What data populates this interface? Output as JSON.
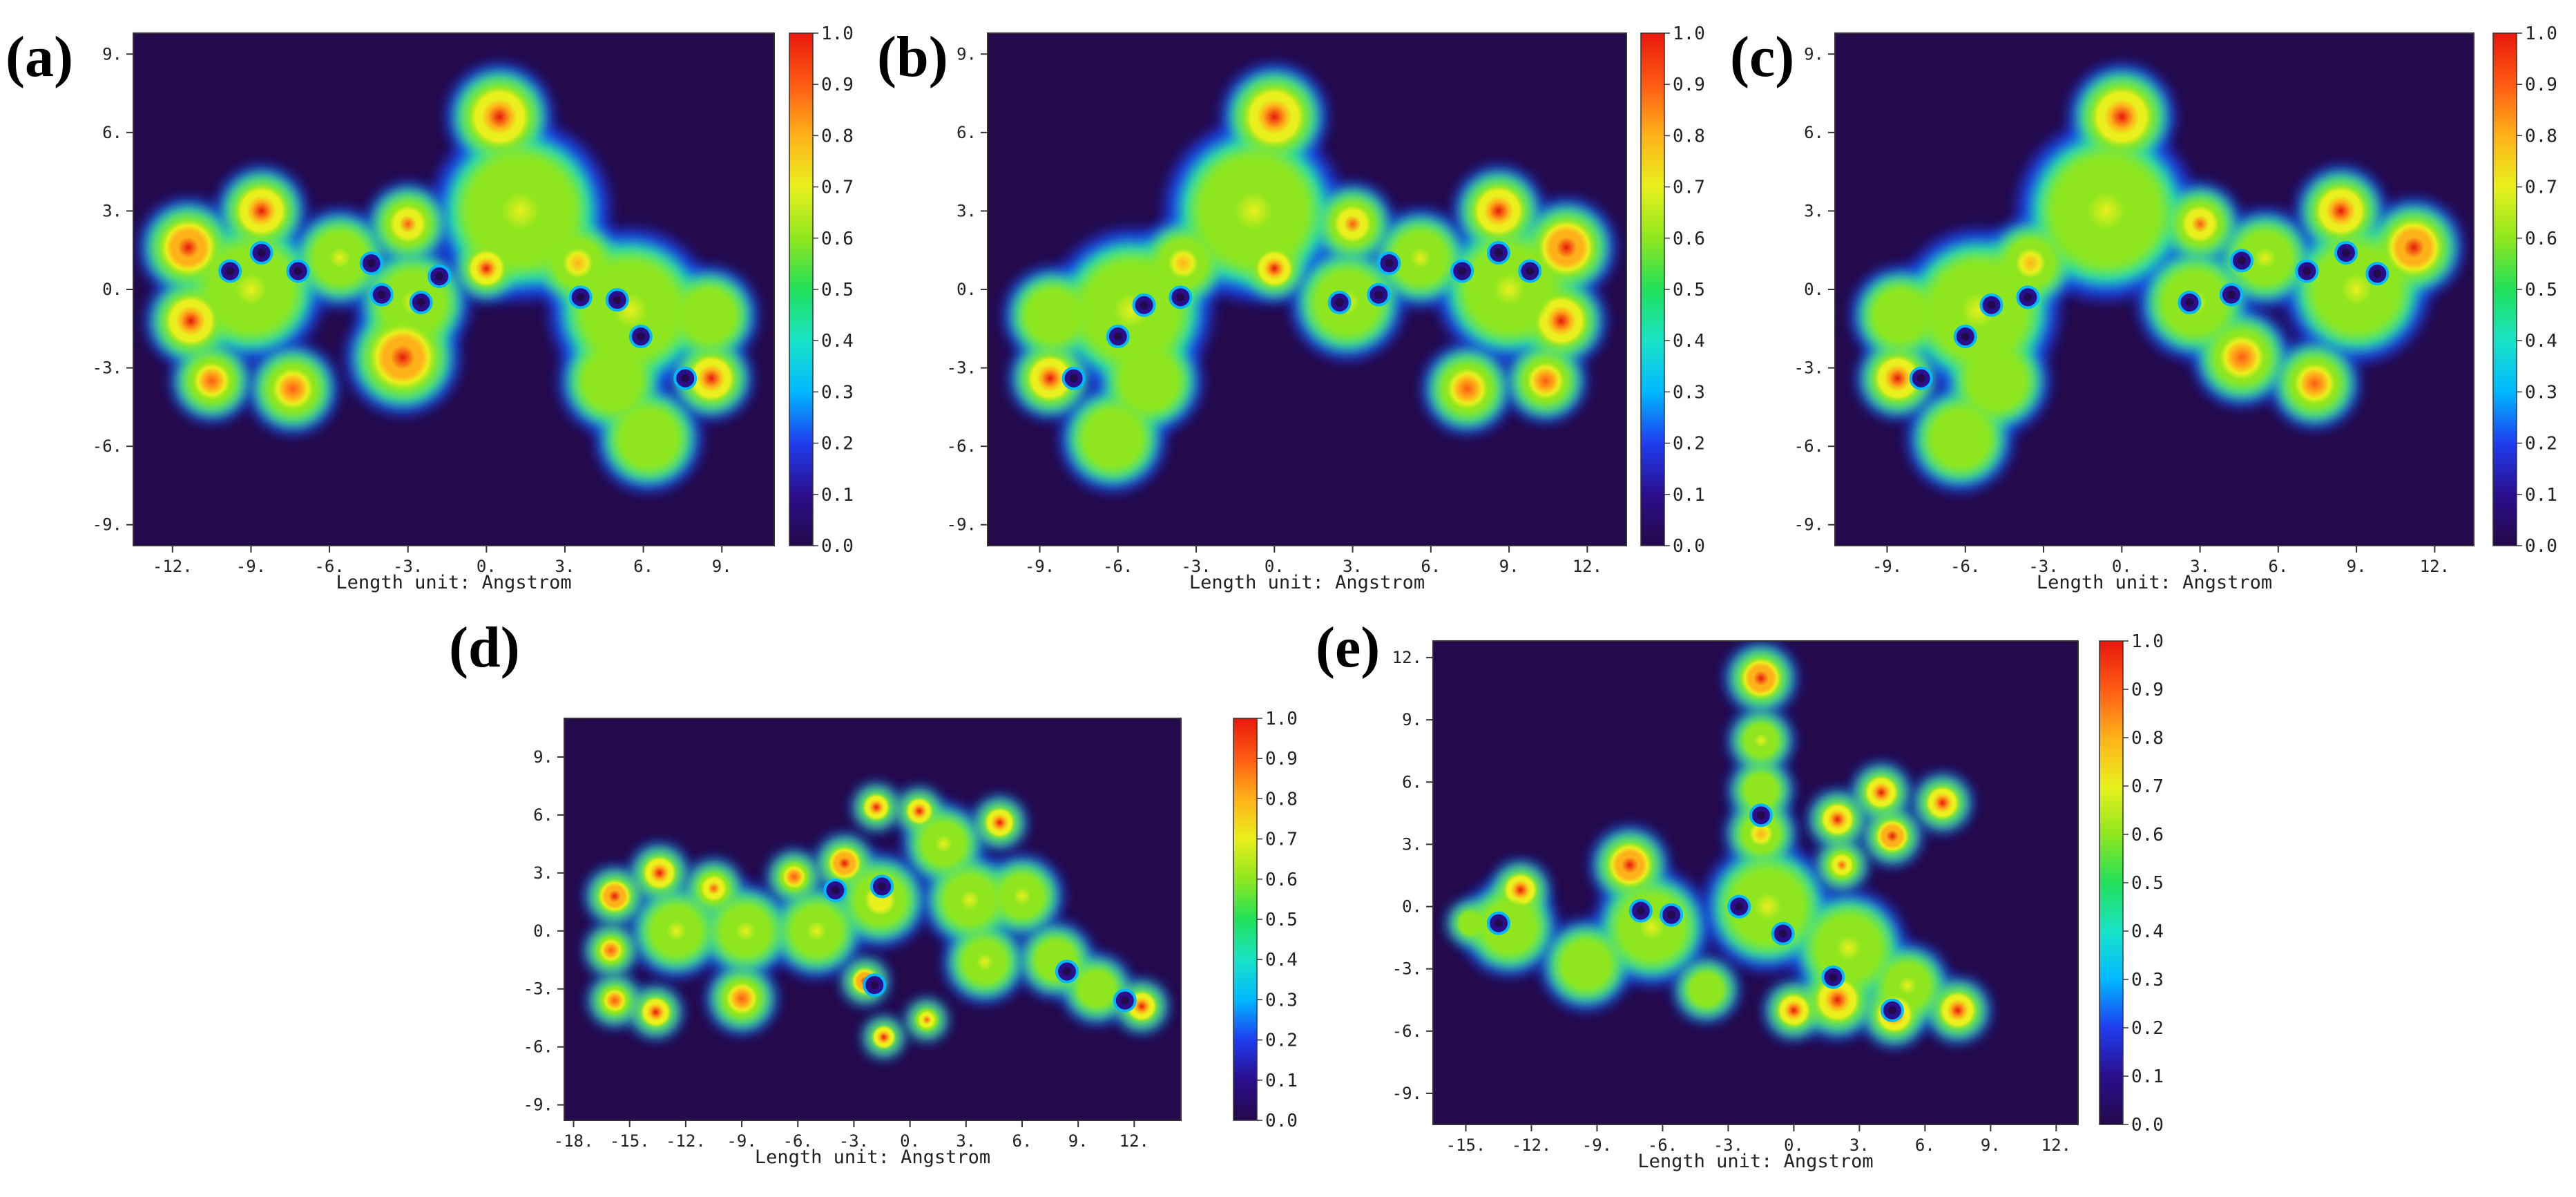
{
  "colors": {
    "background_plot": "#240a4b",
    "colormap": [
      "#240a4b",
      "#2a0e8c",
      "#1f3df0",
      "#00b8ff",
      "#19e3c7",
      "#22e05a",
      "#8fe61e",
      "#e9f01d",
      "#ffb11a",
      "#ff5b14",
      "#e8180c"
    ]
  },
  "chart_data": [
    {
      "type": "heatmap",
      "panel_label": "(a)",
      "xlabel": "Length unit: Angstrom",
      "xlim": [
        -13.5,
        11.0
      ],
      "ylim": [
        -9.8,
        9.8
      ],
      "x_ticks": [
        "-12.",
        "-9.",
        "-6.",
        "-3.",
        "0.",
        "3.",
        "6.",
        "9."
      ],
      "y_ticks": [
        "9.",
        "6.",
        "3.",
        "0.",
        "-3.",
        "-6.",
        "-9."
      ],
      "colorbar": {
        "min": 0.0,
        "max": 1.0,
        "ticks": [
          "1.0",
          "0.9",
          "0.8",
          "0.7",
          "0.6",
          "0.5",
          "0.4",
          "0.3",
          "0.2",
          "0.1",
          "0.0"
        ]
      },
      "basins": [
        {
          "x": 0.5,
          "y": 6.6,
          "r": 1.3,
          "v": 0.98
        },
        {
          "x": 1.3,
          "y": 3.0,
          "r": 2.2,
          "v": 0.68
        },
        {
          "x": -11.4,
          "y": 1.6,
          "r": 1.2,
          "v": 1.0
        },
        {
          "x": -11.3,
          "y": -1.2,
          "r": 1.1,
          "v": 0.98
        },
        {
          "x": -8.6,
          "y": 3.0,
          "r": 1.1,
          "v": 0.95
        },
        {
          "x": -9.0,
          "y": 0.0,
          "r": 1.8,
          "v": 0.7
        },
        {
          "x": -10.5,
          "y": -3.5,
          "r": 1.0,
          "v": 0.9
        },
        {
          "x": -7.4,
          "y": -3.8,
          "r": 1.1,
          "v": 0.92
        },
        {
          "x": -5.6,
          "y": 1.2,
          "r": 1.2,
          "v": 0.7
        },
        {
          "x": -3.0,
          "y": 2.5,
          "r": 1.0,
          "v": 0.85
        },
        {
          "x": -2.8,
          "y": -0.5,
          "r": 1.4,
          "v": 0.7
        },
        {
          "x": -3.2,
          "y": -2.6,
          "r": 1.4,
          "v": 1.0
        },
        {
          "x": 0.0,
          "y": 0.8,
          "r": 0.8,
          "v": 0.98
        },
        {
          "x": 3.5,
          "y": 1.0,
          "r": 1.1,
          "v": 0.75
        },
        {
          "x": 5.5,
          "y": -0.8,
          "r": 2.0,
          "v": 0.68
        },
        {
          "x": 4.8,
          "y": -3.5,
          "r": 1.3,
          "v": 0.62
        },
        {
          "x": 8.5,
          "y": -1.0,
          "r": 1.2,
          "v": 0.62
        },
        {
          "x": 8.6,
          "y": -3.4,
          "r": 1.0,
          "v": 0.97
        },
        {
          "x": 6.2,
          "y": -5.7,
          "r": 1.3,
          "v": 0.55
        }
      ],
      "blue_rings": [
        {
          "x": -9.8,
          "y": 0.7
        },
        {
          "x": -8.6,
          "y": 1.4
        },
        {
          "x": -7.2,
          "y": 0.7
        },
        {
          "x": -4.4,
          "y": 1.0
        },
        {
          "x": -4.0,
          "y": -0.2
        },
        {
          "x": -2.5,
          "y": -0.5
        },
        {
          "x": -1.8,
          "y": 0.5
        },
        {
          "x": 3.6,
          "y": -0.3
        },
        {
          "x": 5.0,
          "y": -0.4
        },
        {
          "x": 5.9,
          "y": -1.8
        },
        {
          "x": 7.6,
          "y": -3.4
        }
      ]
    },
    {
      "type": "heatmap",
      "panel_label": "(b)",
      "xlabel": "Length unit: Angstrom",
      "xlim": [
        -11.0,
        13.5
      ],
      "ylim": [
        -9.8,
        9.8
      ],
      "x_ticks": [
        "-9.",
        "-6.",
        "-3.",
        "0.",
        "3.",
        "6.",
        "9.",
        "12."
      ],
      "y_ticks": [
        "9.",
        "6.",
        "3.",
        "0.",
        "-3.",
        "-6.",
        "-9."
      ],
      "colorbar": {
        "min": 0.0,
        "max": 1.0,
        "ticks": [
          "1.0",
          "0.9",
          "0.8",
          "0.7",
          "0.6",
          "0.5",
          "0.4",
          "0.3",
          "0.2",
          "0.1",
          "0.0"
        ]
      },
      "basins": [
        {
          "x": 0.0,
          "y": 6.6,
          "r": 1.3,
          "v": 0.98
        },
        {
          "x": -0.8,
          "y": 3.0,
          "r": 2.2,
          "v": 0.68
        },
        {
          "x": 11.2,
          "y": 1.6,
          "r": 1.2,
          "v": 1.0
        },
        {
          "x": 11.0,
          "y": -1.2,
          "r": 1.1,
          "v": 0.98
        },
        {
          "x": 8.6,
          "y": 3.0,
          "r": 1.1,
          "v": 0.95
        },
        {
          "x": 9.0,
          "y": 0.0,
          "r": 1.8,
          "v": 0.7
        },
        {
          "x": 10.4,
          "y": -3.5,
          "r": 1.0,
          "v": 0.9
        },
        {
          "x": 7.4,
          "y": -3.8,
          "r": 1.1,
          "v": 0.92
        },
        {
          "x": 5.6,
          "y": 1.2,
          "r": 1.2,
          "v": 0.7
        },
        {
          "x": 3.0,
          "y": 2.5,
          "r": 1.0,
          "v": 0.85
        },
        {
          "x": 2.8,
          "y": -0.5,
          "r": 1.4,
          "v": 0.7
        },
        {
          "x": 0.0,
          "y": 0.8,
          "r": 0.8,
          "v": 0.98
        },
        {
          "x": -3.5,
          "y": 1.0,
          "r": 1.1,
          "v": 0.75
        },
        {
          "x": -5.5,
          "y": -0.8,
          "r": 2.0,
          "v": 0.68
        },
        {
          "x": -4.8,
          "y": -3.5,
          "r": 1.3,
          "v": 0.62
        },
        {
          "x": -8.5,
          "y": -1.0,
          "r": 1.2,
          "v": 0.62
        },
        {
          "x": -8.6,
          "y": -3.4,
          "r": 1.0,
          "v": 0.97
        },
        {
          "x": -6.2,
          "y": -5.7,
          "r": 1.3,
          "v": 0.55
        }
      ],
      "blue_rings": [
        {
          "x": 9.8,
          "y": 0.7
        },
        {
          "x": 8.6,
          "y": 1.4
        },
        {
          "x": 7.2,
          "y": 0.7
        },
        {
          "x": 4.4,
          "y": 1.0
        },
        {
          "x": 4.0,
          "y": -0.2
        },
        {
          "x": 2.5,
          "y": -0.5
        },
        {
          "x": -3.6,
          "y": -0.3
        },
        {
          "x": -5.0,
          "y": -0.6
        },
        {
          "x": -6.0,
          "y": -1.8
        },
        {
          "x": -7.7,
          "y": -3.4
        }
      ]
    },
    {
      "type": "heatmap",
      "panel_label": "(c)",
      "xlabel": "Length unit: Angstrom",
      "xlim": [
        -11.0,
        13.5
      ],
      "ylim": [
        -9.8,
        9.8
      ],
      "x_ticks": [
        "-9.",
        "-6.",
        "-3.",
        "0.",
        "3.",
        "6.",
        "9.",
        "12."
      ],
      "y_ticks": [
        "9.",
        "6.",
        "3.",
        "0.",
        "-3.",
        "-6.",
        "-9."
      ],
      "colorbar": {
        "min": 0.0,
        "max": 1.0,
        "ticks": [
          "1.0",
          "0.9",
          "0.8",
          "0.7",
          "0.6",
          "0.5",
          "0.4",
          "0.3",
          "0.2",
          "0.1",
          "0.0"
        ]
      },
      "basins": [
        {
          "x": 0.0,
          "y": 6.6,
          "r": 1.3,
          "v": 0.98
        },
        {
          "x": -0.6,
          "y": 3.0,
          "r": 2.2,
          "v": 0.68
        },
        {
          "x": 11.2,
          "y": 1.6,
          "r": 1.2,
          "v": 1.0
        },
        {
          "x": 8.4,
          "y": 3.0,
          "r": 1.1,
          "v": 0.95
        },
        {
          "x": 9.0,
          "y": 0.0,
          "r": 1.8,
          "v": 0.7
        },
        {
          "x": 7.4,
          "y": -3.6,
          "r": 1.1,
          "v": 0.92
        },
        {
          "x": 5.5,
          "y": 1.2,
          "r": 1.2,
          "v": 0.7
        },
        {
          "x": 3.0,
          "y": 2.5,
          "r": 1.0,
          "v": 0.85
        },
        {
          "x": 2.8,
          "y": -0.5,
          "r": 1.4,
          "v": 0.7
        },
        {
          "x": 4.6,
          "y": -2.6,
          "r": 1.2,
          "v": 0.92
        },
        {
          "x": -3.5,
          "y": 1.0,
          "r": 1.1,
          "v": 0.75
        },
        {
          "x": -5.5,
          "y": -0.8,
          "r": 2.0,
          "v": 0.68
        },
        {
          "x": -4.8,
          "y": -3.5,
          "r": 1.3,
          "v": 0.62
        },
        {
          "x": -8.5,
          "y": -1.0,
          "r": 1.2,
          "v": 0.62
        },
        {
          "x": -8.6,
          "y": -3.4,
          "r": 1.0,
          "v": 0.97
        },
        {
          "x": -6.2,
          "y": -5.7,
          "r": 1.3,
          "v": 0.55
        }
      ],
      "blue_rings": [
        {
          "x": 9.8,
          "y": 0.6
        },
        {
          "x": 8.6,
          "y": 1.4
        },
        {
          "x": 7.1,
          "y": 0.7
        },
        {
          "x": 4.6,
          "y": 1.1
        },
        {
          "x": 4.2,
          "y": -0.2
        },
        {
          "x": 2.6,
          "y": -0.5
        },
        {
          "x": -3.6,
          "y": -0.3
        },
        {
          "x": -5.0,
          "y": -0.6
        },
        {
          "x": -6.0,
          "y": -1.8
        },
        {
          "x": -7.7,
          "y": -3.4
        }
      ]
    },
    {
      "type": "heatmap",
      "panel_label": "(d)",
      "xlabel": "Length unit: Angstrom",
      "xlim": [
        -18.5,
        14.5
      ],
      "ylim": [
        -9.8,
        11.0
      ],
      "x_ticks": [
        "-18.",
        "-15.",
        "-12.",
        "-9.",
        "-6.",
        "-3.",
        "0.",
        "3.",
        "6.",
        "9.",
        "12."
      ],
      "y_ticks": [
        "9.",
        "6.",
        "3.",
        "0.",
        "-3.",
        "-6.",
        "-9."
      ],
      "colorbar": {
        "min": 0.0,
        "max": 1.0,
        "ticks": [
          "1.0",
          "0.9",
          "0.8",
          "0.7",
          "0.6",
          "0.5",
          "0.4",
          "0.3",
          "0.2",
          "0.1",
          "0.0"
        ]
      },
      "basins": [
        {
          "x": -15.8,
          "y": 1.8,
          "r": 1.0,
          "v": 1.0
        },
        {
          "x": -16.0,
          "y": -1.0,
          "r": 0.9,
          "v": 0.9
        },
        {
          "x": -13.4,
          "y": 3.0,
          "r": 1.0,
          "v": 0.97
        },
        {
          "x": -12.5,
          "y": 0.0,
          "r": 1.6,
          "v": 0.68
        },
        {
          "x": -10.5,
          "y": 2.2,
          "r": 1.0,
          "v": 0.85
        },
        {
          "x": -8.8,
          "y": 0.0,
          "r": 1.6,
          "v": 0.7
        },
        {
          "x": -6.2,
          "y": 2.8,
          "r": 0.9,
          "v": 0.9
        },
        {
          "x": -5.0,
          "y": 0.0,
          "r": 1.6,
          "v": 0.7
        },
        {
          "x": -3.5,
          "y": 3.5,
          "r": 1.0,
          "v": 1.0
        },
        {
          "x": -1.6,
          "y": 1.6,
          "r": 1.6,
          "v": 0.72
        },
        {
          "x": -1.8,
          "y": 6.4,
          "r": 0.8,
          "v": 0.98
        },
        {
          "x": 0.5,
          "y": 6.2,
          "r": 0.8,
          "v": 0.97
        },
        {
          "x": 1.8,
          "y": 4.5,
          "r": 1.4,
          "v": 0.7
        },
        {
          "x": 4.8,
          "y": 5.6,
          "r": 0.9,
          "v": 0.97
        },
        {
          "x": 3.2,
          "y": 1.6,
          "r": 1.6,
          "v": 0.7
        },
        {
          "x": 6.0,
          "y": 1.8,
          "r": 1.4,
          "v": 0.65
        },
        {
          "x": 4.0,
          "y": -1.6,
          "r": 1.4,
          "v": 0.65
        },
        {
          "x": 7.8,
          "y": -1.5,
          "r": 1.3,
          "v": 0.62
        },
        {
          "x": 10.0,
          "y": -3.0,
          "r": 1.2,
          "v": 0.6
        },
        {
          "x": 12.4,
          "y": -3.9,
          "r": 0.9,
          "v": 0.98
        },
        {
          "x": -15.8,
          "y": -3.6,
          "r": 0.9,
          "v": 0.9
        },
        {
          "x": -13.6,
          "y": -4.2,
          "r": 0.9,
          "v": 0.95
        },
        {
          "x": -9.0,
          "y": -3.5,
          "r": 1.2,
          "v": 0.92
        },
        {
          "x": -2.4,
          "y": -2.6,
          "r": 0.8,
          "v": 1.0
        },
        {
          "x": -1.4,
          "y": -5.5,
          "r": 0.7,
          "v": 0.95
        },
        {
          "x": 0.9,
          "y": -4.6,
          "r": 0.7,
          "v": 0.85
        }
      ],
      "blue_rings": [
        {
          "x": -4.0,
          "y": 2.1
        },
        {
          "x": -1.5,
          "y": 2.3
        },
        {
          "x": -1.9,
          "y": -2.8
        },
        {
          "x": 8.4,
          "y": -2.1
        },
        {
          "x": 11.5,
          "y": -3.6
        }
      ]
    },
    {
      "type": "heatmap",
      "panel_label": "(e)",
      "xlabel": "Length unit: Angstrom",
      "xlim": [
        -16.5,
        13.0
      ],
      "ylim": [
        -10.5,
        12.8
      ],
      "x_ticks": [
        "-15.",
        "-12.",
        "-9.",
        "-6.",
        "-3.",
        "0.",
        "3.",
        "6.",
        "9.",
        "12."
      ],
      "y_ticks": [
        "12.",
        "9.",
        "6.",
        "3.",
        "0.",
        "-3.",
        "-6.",
        "-9."
      ],
      "colorbar": {
        "min": 0.0,
        "max": 1.0,
        "ticks": [
          "1.0",
          "0.9",
          "0.8",
          "0.7",
          "0.6",
          "0.5",
          "0.4",
          "0.3",
          "0.2",
          "0.1",
          "0.0"
        ]
      },
      "basins": [
        {
          "x": -1.5,
          "y": 11.0,
          "r": 1.1,
          "v": 1.0
        },
        {
          "x": -1.5,
          "y": 8.0,
          "r": 1.0,
          "v": 0.65
        },
        {
          "x": -1.5,
          "y": 5.6,
          "r": 1.0,
          "v": 0.6
        },
        {
          "x": -1.5,
          "y": 3.5,
          "r": 1.1,
          "v": 0.75
        },
        {
          "x": -1.2,
          "y": 0.0,
          "r": 2.0,
          "v": 0.7
        },
        {
          "x": 2.0,
          "y": 4.2,
          "r": 0.9,
          "v": 0.98
        },
        {
          "x": 4.0,
          "y": 5.5,
          "r": 0.9,
          "v": 0.98
        },
        {
          "x": 4.5,
          "y": 3.4,
          "r": 0.9,
          "v": 1.0
        },
        {
          "x": 6.8,
          "y": 5.0,
          "r": 0.9,
          "v": 0.97
        },
        {
          "x": 2.2,
          "y": 2.0,
          "r": 0.8,
          "v": 0.85
        },
        {
          "x": -7.5,
          "y": 2.0,
          "r": 1.2,
          "v": 1.0
        },
        {
          "x": -6.5,
          "y": -1.0,
          "r": 1.8,
          "v": 0.7
        },
        {
          "x": -12.5,
          "y": 0.8,
          "r": 0.9,
          "v": 0.95
        },
        {
          "x": -13.0,
          "y": -1.0,
          "r": 1.5,
          "v": 0.62
        },
        {
          "x": -9.5,
          "y": -2.8,
          "r": 1.4,
          "v": 0.6
        },
        {
          "x": -14.8,
          "y": -0.8,
          "r": 0.7,
          "v": 0.55
        },
        {
          "x": 2.5,
          "y": -2.0,
          "r": 1.8,
          "v": 0.68
        },
        {
          "x": 2.0,
          "y": -4.5,
          "r": 1.2,
          "v": 0.98
        },
        {
          "x": 0.0,
          "y": -5.0,
          "r": 0.9,
          "v": 0.98
        },
        {
          "x": 5.2,
          "y": -3.8,
          "r": 1.3,
          "v": 0.65
        },
        {
          "x": 4.6,
          "y": -5.2,
          "r": 1.0,
          "v": 0.98
        },
        {
          "x": 7.5,
          "y": -5.0,
          "r": 1.0,
          "v": 0.95
        },
        {
          "x": -4.0,
          "y": -4.0,
          "r": 1.0,
          "v": 0.6
        }
      ],
      "blue_rings": [
        {
          "x": -13.5,
          "y": -0.8
        },
        {
          "x": -7.0,
          "y": -0.2
        },
        {
          "x": -5.6,
          "y": -0.4
        },
        {
          "x": -2.5,
          "y": 0.0
        },
        {
          "x": -1.5,
          "y": 4.4
        },
        {
          "x": -0.5,
          "y": -1.3
        },
        {
          "x": 1.8,
          "y": -3.4
        },
        {
          "x": 4.5,
          "y": -5.0
        }
      ]
    }
  ]
}
